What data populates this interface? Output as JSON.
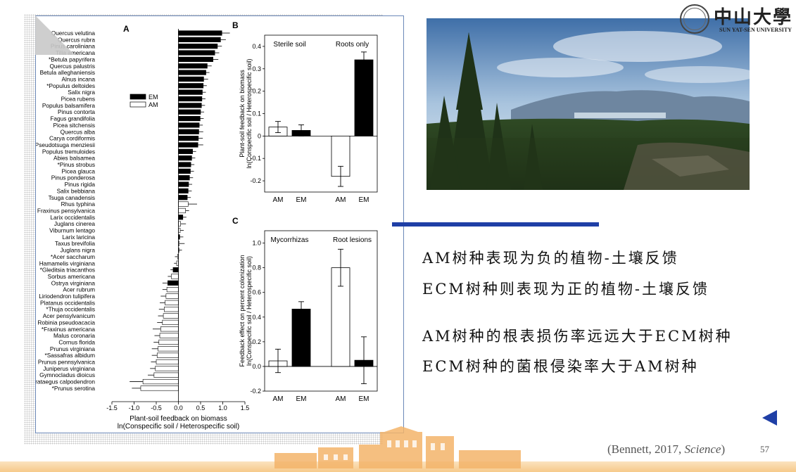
{
  "logo": {
    "cn": "中山大學",
    "en": "SUN YAT-SEN UNIVERSITY"
  },
  "bullets": [
    "AM树种表现为负的植物-土壤反馈",
    "ECM树种则表现为正的植物-土壤反馈",
    "AM树种的根表损伤率远远大于ECM树种",
    "ECM树种的菌根侵染率大于AM树种"
  ],
  "citation": {
    "pre": "(Bennett, 2017, ",
    "journal": "Science",
    "post": ")"
  },
  "page_number": "57",
  "colors": {
    "em": "#000000",
    "am": "#ffffff",
    "accent": "#1f3fa6"
  },
  "chart_data": [
    {
      "type": "bar",
      "orientation": "horizontal",
      "panel": "A",
      "xlabel": "Plant-soil feedback on biomass",
      "xlabel2": "ln(Conspecific soil / Heterospecific soil)",
      "xlim": [
        -1.5,
        1.5
      ],
      "xticks": [
        "-1.5",
        "-1.0",
        "-0.5",
        "0.0",
        "0.5",
        "1.0",
        "1.5"
      ],
      "legend": [
        {
          "name": "EM"
        },
        {
          "name": "AM"
        }
      ],
      "species": [
        {
          "name": "Quercus velutina",
          "value": 0.98,
          "err": 0.18,
          "group": "EM"
        },
        {
          "name": "Quercus rubra",
          "value": 0.95,
          "err": 0.12,
          "group": "EM"
        },
        {
          "name": "Pinus caroliniana",
          "value": 0.88,
          "err": 0.1,
          "group": "EM"
        },
        {
          "name": "Tilia americana",
          "value": 0.82,
          "err": 0.1,
          "group": "EM"
        },
        {
          "name": "*Betula papyrifera",
          "value": 0.78,
          "err": 0.12,
          "group": "EM"
        },
        {
          "name": "Quercus palustris",
          "value": 0.65,
          "err": 0.1,
          "group": "EM"
        },
        {
          "name": "Betula alleghaniensis",
          "value": 0.62,
          "err": 0.08,
          "group": "EM"
        },
        {
          "name": "Alnus incana",
          "value": 0.57,
          "err": 0.1,
          "group": "EM"
        },
        {
          "name": "*Populus deltoides",
          "value": 0.56,
          "err": 0.08,
          "group": "EM"
        },
        {
          "name": "Salix nigra",
          "value": 0.54,
          "err": 0.08,
          "group": "EM"
        },
        {
          "name": "Picea rubens",
          "value": 0.53,
          "err": 0.08,
          "group": "EM"
        },
        {
          "name": "Populus balsamifera",
          "value": 0.52,
          "err": 0.08,
          "group": "EM"
        },
        {
          "name": "Pinus contorta",
          "value": 0.5,
          "err": 0.08,
          "group": "EM"
        },
        {
          "name": "Fagus grandifolia",
          "value": 0.49,
          "err": 0.08,
          "group": "EM"
        },
        {
          "name": "Picea sitchensis",
          "value": 0.47,
          "err": 0.08,
          "group": "EM"
        },
        {
          "name": "Quercus alba",
          "value": 0.46,
          "err": 0.1,
          "group": "EM"
        },
        {
          "name": "Carya cordiformis",
          "value": 0.45,
          "err": 0.1,
          "group": "EM"
        },
        {
          "name": "Pseudotsuga menziesii",
          "value": 0.44,
          "err": 0.12,
          "group": "EM"
        },
        {
          "name": "Populus tremuloides",
          "value": 0.32,
          "err": 0.08,
          "group": "EM"
        },
        {
          "name": "Abies balsamea",
          "value": 0.3,
          "err": 0.08,
          "group": "EM"
        },
        {
          "name": "*Pinus strobus",
          "value": 0.28,
          "err": 0.08,
          "group": "EM"
        },
        {
          "name": "Picea glauca",
          "value": 0.27,
          "err": 0.08,
          "group": "EM"
        },
        {
          "name": "Pinus ponderosa",
          "value": 0.25,
          "err": 0.08,
          "group": "EM"
        },
        {
          "name": "Pinus rigida",
          "value": 0.23,
          "err": 0.08,
          "group": "EM"
        },
        {
          "name": "Salix bebbiana",
          "value": 0.22,
          "err": 0.08,
          "group": "EM"
        },
        {
          "name": "Tsuga canadensis",
          "value": 0.2,
          "err": 0.08,
          "group": "EM"
        },
        {
          "name": "Rhus typhina",
          "value": 0.22,
          "err": 0.2,
          "group": "AM"
        },
        {
          "name": "Fraxinus pensylvanica",
          "value": 0.16,
          "err": 0.08,
          "group": "AM"
        },
        {
          "name": "Larix occidentalis",
          "value": 0.1,
          "err": 0.08,
          "group": "EM"
        },
        {
          "name": "Juglans cinerea",
          "value": 0.05,
          "err": 0.12,
          "group": "AM"
        },
        {
          "name": "Viburnum lentago",
          "value": 0.04,
          "err": 0.08,
          "group": "AM"
        },
        {
          "name": "Larix laricina",
          "value": 0.03,
          "err": 0.08,
          "group": "EM"
        },
        {
          "name": "Taxus brevifolia",
          "value": 0.02,
          "err": 0.12,
          "group": "AM"
        },
        {
          "name": "Juglans nigra",
          "value": 0.0,
          "err": 0.08,
          "group": "AM"
        },
        {
          "name": "*Acer saccharum",
          "value": -0.02,
          "err": 0.06,
          "group": "AM"
        },
        {
          "name": "Hamamelis virginiana",
          "value": -0.04,
          "err": 0.06,
          "group": "AM"
        },
        {
          "name": "*Gleditsia triacanthos",
          "value": -0.12,
          "err": 0.06,
          "group": "EM"
        },
        {
          "name": "Sorbus americana",
          "value": -0.16,
          "err": 0.08,
          "group": "AM"
        },
        {
          "name": "Ostrya virginiana",
          "value": -0.24,
          "err": 0.12,
          "group": "EM"
        },
        {
          "name": "Acer rubrum",
          "value": -0.26,
          "err": 0.1,
          "group": "AM"
        },
        {
          "name": "Liriodendron tulipifera",
          "value": -0.28,
          "err": 0.12,
          "group": "AM"
        },
        {
          "name": "Platanus occidentalis",
          "value": -0.3,
          "err": 0.12,
          "group": "AM"
        },
        {
          "name": "*Thuja occidentalis",
          "value": -0.32,
          "err": 0.12,
          "group": "AM"
        },
        {
          "name": "Acer pensylvanicum",
          "value": -0.34,
          "err": 0.12,
          "group": "AM"
        },
        {
          "name": "Robinia pseudoacacia",
          "value": -0.36,
          "err": 0.12,
          "group": "AM"
        },
        {
          "name": "*Fraxinus americana",
          "value": -0.4,
          "err": 0.18,
          "group": "AM"
        },
        {
          "name": "Malus coronaria",
          "value": -0.42,
          "err": 0.12,
          "group": "AM"
        },
        {
          "name": "Cornus florida",
          "value": -0.44,
          "err": 0.12,
          "group": "AM"
        },
        {
          "name": "Prunus virginiana",
          "value": -0.46,
          "err": 0.14,
          "group": "AM"
        },
        {
          "name": "*Sassafras albidum",
          "value": -0.48,
          "err": 0.12,
          "group": "AM"
        },
        {
          "name": "Prunus pennsylvanica",
          "value": -0.5,
          "err": 0.12,
          "group": "AM"
        },
        {
          "name": "Juniperus virginiana",
          "value": -0.52,
          "err": 0.12,
          "group": "AM"
        },
        {
          "name": "Gymnocladus dioicus",
          "value": -0.55,
          "err": 0.14,
          "group": "AM"
        },
        {
          "name": "Crataegus calpodendron",
          "value": -0.8,
          "err": 0.3,
          "group": "AM"
        },
        {
          "name": "*Prunus serotina",
          "value": -0.85,
          "err": 0.2,
          "group": "AM"
        }
      ]
    },
    {
      "type": "bar",
      "panel": "B",
      "ylabel": "Plant-soil feedback on biomass",
      "ylabel2": "ln(Conspecific soil / Heterospecific soil)",
      "ylim": [
        -0.25,
        0.45
      ],
      "yticks": [
        "-0.2",
        "-0.1",
        "0",
        "0.1",
        "0.2",
        "0.3",
        "0.4"
      ],
      "groups": [
        "Sterile soil",
        "Roots only"
      ],
      "categories": [
        "AM",
        "EM",
        "AM",
        "EM"
      ],
      "bars": [
        {
          "label": "AM",
          "group": "Sterile soil",
          "value": 0.04,
          "err": 0.025,
          "fill": "AM"
        },
        {
          "label": "EM",
          "group": "Sterile soil",
          "value": 0.025,
          "err": 0.025,
          "fill": "EM"
        },
        {
          "label": "AM",
          "group": "Roots only",
          "value": -0.18,
          "err": 0.045,
          "fill": "AM"
        },
        {
          "label": "EM",
          "group": "Roots only",
          "value": 0.34,
          "err": 0.035,
          "fill": "EM"
        }
      ]
    },
    {
      "type": "bar",
      "panel": "C",
      "ylabel": "Feedback effect on percent colonization",
      "ylabel2": "ln(Conspecific soil / Heterospecific soil)",
      "ylim": [
        -0.2,
        1.1
      ],
      "yticks": [
        "-0.2",
        "0.0",
        "0.2",
        "0.4",
        "0.6",
        "0.8",
        "1.0"
      ],
      "groups": [
        "Mycorrhizas",
        "Root lesions"
      ],
      "categories": [
        "AM",
        "EM",
        "AM",
        "EM"
      ],
      "bars": [
        {
          "label": "AM",
          "group": "Mycorrhizas",
          "value": 0.045,
          "err": 0.095,
          "fill": "AM"
        },
        {
          "label": "EM",
          "group": "Mycorrhizas",
          "value": 0.465,
          "err": 0.06,
          "fill": "EM"
        },
        {
          "label": "AM",
          "group": "Root lesions",
          "value": 0.8,
          "err": 0.15,
          "fill": "AM"
        },
        {
          "label": "EM",
          "group": "Root lesions",
          "value": 0.05,
          "err": 0.19,
          "fill": "EM"
        }
      ]
    }
  ]
}
